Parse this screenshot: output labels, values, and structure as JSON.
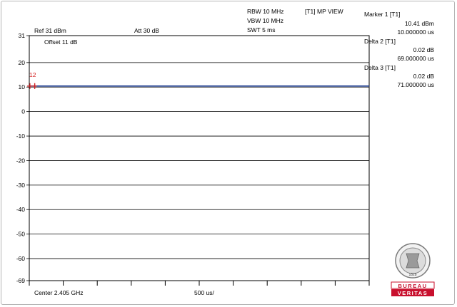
{
  "header": {
    "rbw": "RBW 10 MHz",
    "vbw": "VBW 10 MHz",
    "swt": "SWT 5 ms",
    "trace_mode": "[T1] MP VIEW",
    "ref_level": "Ref 31 dBm",
    "attenuation": "Att  30 dB",
    "offset": "Offset 11 dB"
  },
  "markers": [
    {
      "title": "Marker 1 [T1]",
      "level": "10.41 dBm",
      "time": "10.000000 us"
    },
    {
      "title": "Delta 2 [T1]",
      "level": "0.02 dB",
      "time": "69.000000 us"
    },
    {
      "title": "Delta 3 [T1]",
      "level": "0.02 dB",
      "time": "71.000000 us"
    }
  ],
  "marker_flag": "12",
  "footer": {
    "center": "Center 2.405 GHz",
    "span_per_div": "500 us/"
  },
  "logo": {
    "word1": "BUREAU",
    "word2": "VERITAS",
    "year": "1828"
  },
  "colors": {
    "trace": "#1a3a8f",
    "marker": "#d42020",
    "logo_red": "#c8102e",
    "grid": "#000000"
  },
  "chart_data": {
    "type": "line",
    "x_unit": "us",
    "x_range": [
      0,
      5000
    ],
    "ylim": [
      -69,
      31
    ],
    "y_ticks": [
      31,
      20,
      10,
      0,
      -10,
      -20,
      -30,
      -40,
      -50,
      -60,
      -69
    ],
    "x_divisions": 10,
    "grid": true,
    "series": [
      {
        "x": [
          0,
          500,
          1000,
          1500,
          2000,
          2500,
          3000,
          3500,
          4000,
          4500,
          5000
        ],
        "values": [
          10.41,
          10.4,
          10.42,
          10.4,
          10.41,
          10.42,
          10.4,
          10.41,
          10.42,
          10.4,
          10.41
        ]
      }
    ],
    "marker_x": [
      10,
      79,
      81
    ]
  }
}
